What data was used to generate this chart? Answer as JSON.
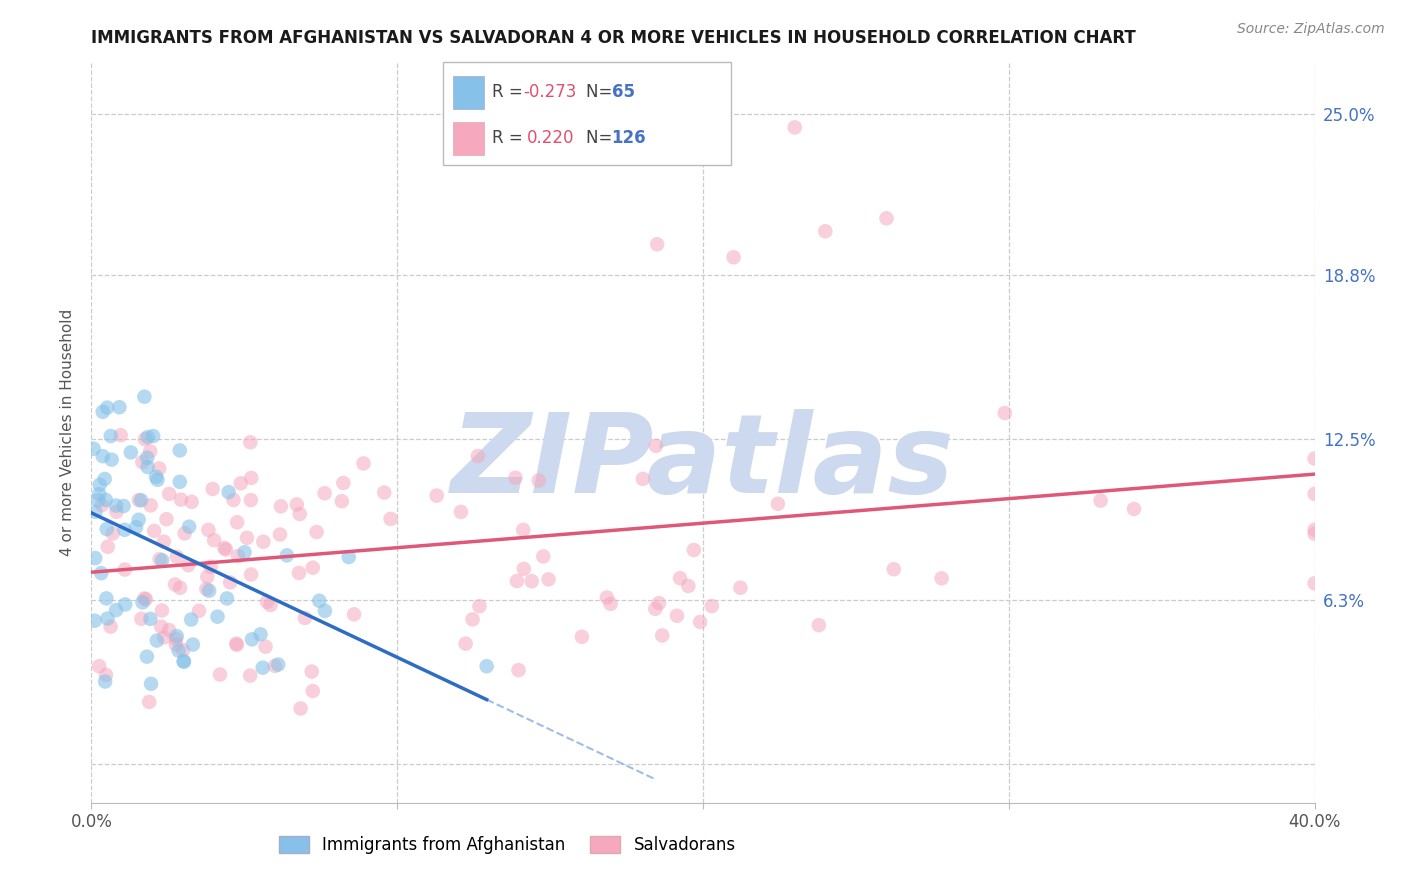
{
  "title": "IMMIGRANTS FROM AFGHANISTAN VS SALVADORAN 4 OR MORE VEHICLES IN HOUSEHOLD CORRELATION CHART",
  "source": "Source: ZipAtlas.com",
  "ylabel": "4 or more Vehicles in Household",
  "xmin": 0.0,
  "xmax": 40.0,
  "ymin": -1.5,
  "ymax": 27.0,
  "ytick_vals": [
    0.0,
    6.3,
    12.5,
    18.8,
    25.0
  ],
  "xtick_vals": [
    0.0,
    10.0,
    20.0,
    30.0,
    40.0
  ],
  "grid_color": "#cccccc",
  "background_color": "#ffffff",
  "watermark_text": "ZIPatlas",
  "watermark_color": "#ccd9ee",
  "legend_R1": "-0.273",
  "legend_N1": "65",
  "legend_R2": "0.220",
  "legend_N2": "126",
  "blue_dot_color": "#85C1E8",
  "pink_dot_color": "#F5A8BE",
  "blue_line_color": "#2E6DC4",
  "pink_line_color": "#E05878",
  "blue_seed": 101,
  "pink_seed": 202,
  "n_afg": 65,
  "n_sal": 126,
  "title_fontsize": 12,
  "source_fontsize": 10,
  "axis_fontsize": 12,
  "ylabel_fontsize": 11,
  "legend_fontsize": 12,
  "right_tick_color": "#4472C4"
}
